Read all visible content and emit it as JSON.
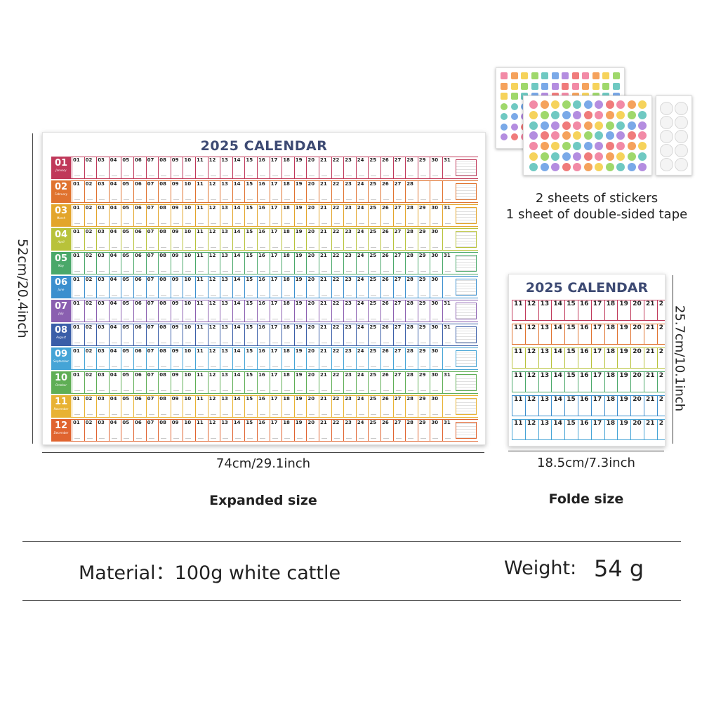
{
  "big_calendar": {
    "title": "2025  CALENDAR",
    "months": [
      {
        "num": "01",
        "name": "January",
        "days": 31,
        "color": "#c0395a"
      },
      {
        "num": "02",
        "name": "February",
        "days": 28,
        "color": "#e0732f"
      },
      {
        "num": "03",
        "name": "March",
        "days": 31,
        "color": "#e3a52b"
      },
      {
        "num": "04",
        "name": "April",
        "days": 30,
        "color": "#b8c23a"
      },
      {
        "num": "05",
        "name": "May",
        "days": 31,
        "color": "#4aa86a"
      },
      {
        "num": "06",
        "name": "June",
        "days": 30,
        "color": "#3b8fce"
      },
      {
        "num": "07",
        "name": "July",
        "days": 31,
        "color": "#8a5fb0"
      },
      {
        "num": "08",
        "name": "August",
        "days": 31,
        "color": "#3a5ea8"
      },
      {
        "num": "09",
        "name": "September",
        "days": 30,
        "color": "#45a4d6"
      },
      {
        "num": "10",
        "name": "October",
        "days": 31,
        "color": "#5fae55"
      },
      {
        "num": "11",
        "name": "November",
        "days": 30,
        "color": "#e8b233"
      },
      {
        "num": "12",
        "name": "December",
        "days": 31,
        "color": "#e0642f"
      }
    ]
  },
  "small_calendar": {
    "title": "2025  CALENDAR",
    "rows": [
      {
        "color": "#c0395a",
        "days": [
          "11",
          "12",
          "13",
          "14",
          "15",
          "16",
          "17",
          "18",
          "19",
          "20",
          "21",
          "2"
        ]
      },
      {
        "color": "#e0732f",
        "days": [
          "11",
          "12",
          "13",
          "14",
          "15",
          "16",
          "17",
          "18",
          "19",
          "20",
          "21",
          "2"
        ]
      },
      {
        "color": "#b8c23a",
        "days": [
          "11",
          "12",
          "13",
          "14",
          "15",
          "16",
          "17",
          "18",
          "19",
          "20",
          "21",
          "2"
        ]
      },
      {
        "color": "#4aa86a",
        "days": [
          "11",
          "12",
          "13",
          "14",
          "15",
          "16",
          "17",
          "18",
          "19",
          "20",
          "21",
          "2"
        ]
      },
      {
        "color": "#3b8fce",
        "days": [
          "11",
          "12",
          "13",
          "14",
          "15",
          "16",
          "17",
          "18",
          "19",
          "20",
          "21",
          "2"
        ]
      },
      {
        "color": "#45a4d6",
        "days": [
          "11",
          "12",
          "13",
          "14",
          "15",
          "16",
          "17",
          "18",
          "19",
          "20",
          "21",
          "2"
        ]
      }
    ]
  },
  "dimensions": {
    "expanded_height": "52cm/20.4inch",
    "expanded_width": "74cm/29.1inch",
    "expanded_caption": "Expanded size",
    "folded_width": "18.5cm/7.3inch",
    "folded_height": "25.7cm/10.1inch",
    "folded_caption": "Folde size"
  },
  "accessories": {
    "line1": "2 sheets of stickers",
    "line2": "1 sheet of double-sided tape"
  },
  "specs": {
    "material": "Material：100g white cattle",
    "weight_label": "Weight:",
    "weight_value": "54 g"
  },
  "sticker_colors": [
    "#f28aa6",
    "#f5a25c",
    "#f6d35b",
    "#9fd86b",
    "#6fc9c2",
    "#7aa9e8",
    "#b48de0",
    "#f07b7b"
  ]
}
